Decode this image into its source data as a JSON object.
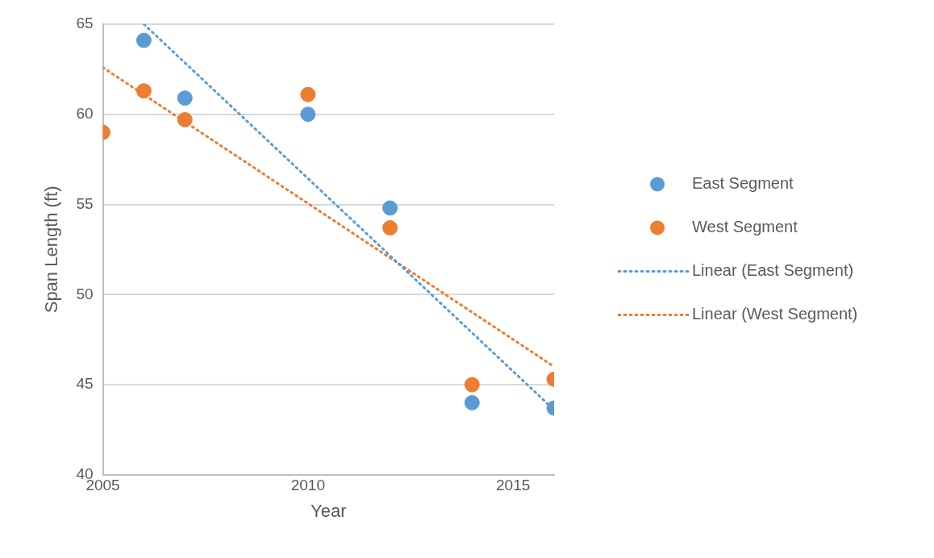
{
  "chart_data": {
    "type": "scatter",
    "xlabel": "Year",
    "ylabel": "Span Length (ft)",
    "xlim": [
      2005,
      2016
    ],
    "xticks": [
      2005,
      2010,
      2015
    ],
    "ylim": [
      40,
      65
    ],
    "yticks": [
      40,
      45,
      50,
      55,
      60,
      65
    ],
    "grid": "y",
    "legend": "right",
    "marker": "circle",
    "series": [
      {
        "name": "East Segment",
        "color": "#5b9bd5",
        "x": [
          2006,
          2007,
          2010,
          2012,
          2014,
          2016
        ],
        "values": [
          64.1,
          60.9,
          60.0,
          54.8,
          44.0,
          43.7
        ]
      },
      {
        "name": "West Segment",
        "color": "#ed7d31",
        "x": [
          2005,
          2006,
          2007,
          2010,
          2012,
          2014,
          2016
        ],
        "values": [
          59.0,
          61.3,
          59.7,
          61.1,
          53.7,
          45.0,
          45.3
        ]
      },
      {
        "name": "Linear (East Segment)",
        "type": "line",
        "marker": "none",
        "line_style": "dotted",
        "color": "#5b9bd5",
        "x": [
          2006,
          2016
        ],
        "values": [
          65,
          43.6
        ]
      },
      {
        "name": "Linear (West Segment)",
        "type": "line",
        "marker": "none",
        "line_style": "dotted",
        "color": "#ed7d31",
        "x": [
          2005,
          2016
        ],
        "values": [
          62.6,
          46.0
        ]
      }
    ]
  }
}
